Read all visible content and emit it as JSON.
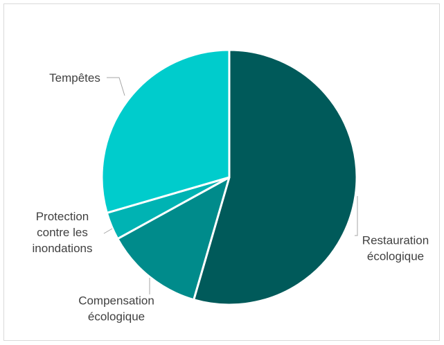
{
  "chart_data": {
    "type": "pie",
    "title": "",
    "slices": [
      {
        "label": "Restauration écologique",
        "lines": [
          "Restauration",
          "écologique"
        ],
        "value": 54.5,
        "color": "#005a5a"
      },
      {
        "label": "Compensation écologique",
        "lines": [
          "Compensation",
          "écologique"
        ],
        "value": 12.5,
        "color": "#008b8b"
      },
      {
        "label": "Protection contre les inondations",
        "lines": [
          "Protection",
          "contre les",
          "inondations"
        ],
        "value": 3.5,
        "color": "#00b3b3"
      },
      {
        "label": "Tempêtes",
        "lines": [
          "Tempêtes"
        ],
        "value": 29.5,
        "color": "#00cccc"
      }
    ],
    "legend": "none",
    "start_angle_deg": 0,
    "direction": "clockwise"
  }
}
